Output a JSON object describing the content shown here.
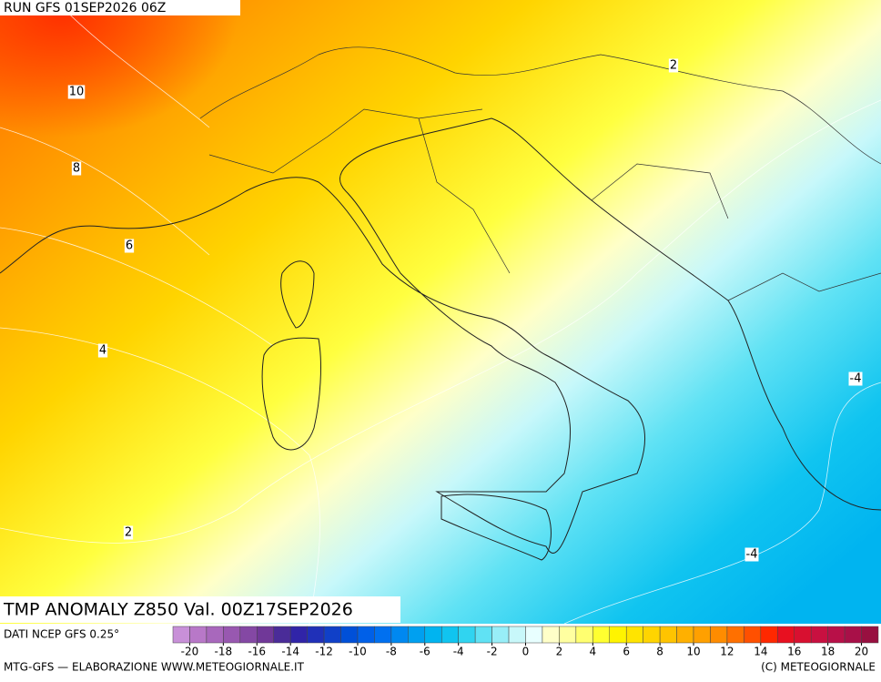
{
  "header": {
    "run": "RUN GFS 01SEP2026 06Z"
  },
  "title": "TMP ANOMALY Z850 Val. 00Z17SEP2026",
  "source": "DATI NCEP GFS 0.25°",
  "footer_left": "MTG-GFS — ELABORAZIONE WWW.METEOGIORNALE.IT",
  "footer_right": "(C) METEOGIORNALE",
  "contour_labels": [
    10,
    8,
    6,
    4,
    2,
    2,
    -4,
    -4
  ],
  "colorbar": {
    "colors": [
      "#c890d8",
      "#b878c8",
      "#a868bc",
      "#9858b0",
      "#8448a4",
      "#703898",
      "#4a2c98",
      "#3024a8",
      "#2030b8",
      "#1040c8",
      "#0050d8",
      "#0060e8",
      "#0070f0",
      "#0088f0",
      "#00a0f0",
      "#00b4f0",
      "#10c4f0",
      "#30d4f0",
      "#60e2f4",
      "#98eef8",
      "#c8f8fa",
      "#e8ffff",
      "#ffffc8",
      "#ffffa0",
      "#ffff70",
      "#ffff30",
      "#fff400",
      "#ffe400",
      "#ffd400",
      "#ffc400",
      "#ffb000",
      "#ffa000",
      "#ff8c00",
      "#ff7000",
      "#ff5000",
      "#ff2800",
      "#e81020",
      "#d81030",
      "#c81040",
      "#b81048",
      "#a81048",
      "#981040"
    ],
    "ticks": [
      -20,
      -18,
      -16,
      -14,
      -12,
      -10,
      -8,
      -6,
      -4,
      -2,
      0,
      2,
      4,
      6,
      8,
      10,
      12,
      14,
      16,
      18,
      20
    ]
  }
}
